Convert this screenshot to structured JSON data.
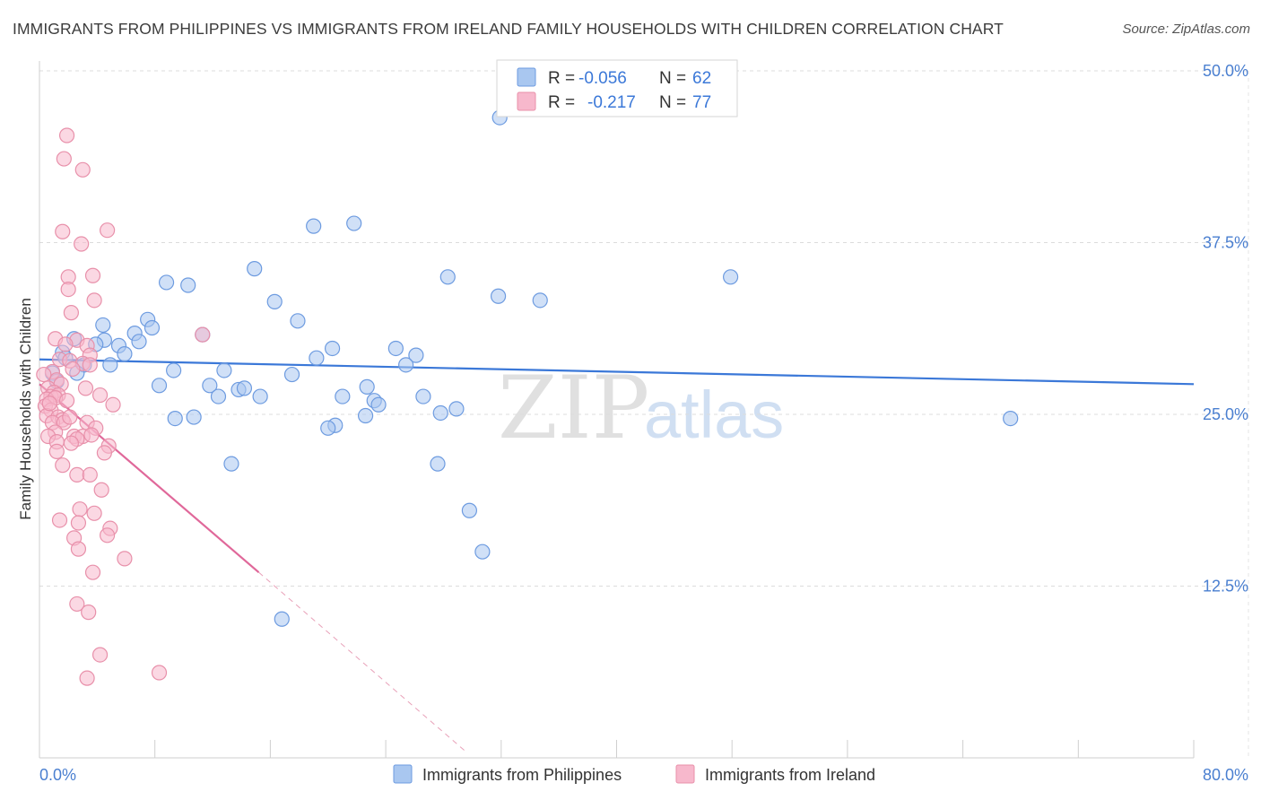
{
  "header": {
    "title": "IMMIGRANTS FROM PHILIPPINES VS IMMIGRANTS FROM IRELAND FAMILY HOUSEHOLDS WITH CHILDREN CORRELATION CHART",
    "source": "Source: ZipAtlas.com"
  },
  "watermark": {
    "zip": "ZIP",
    "atlas": "atlas"
  },
  "legend": {
    "rows": [
      {
        "r_label": "R =",
        "r_value": "-0.056",
        "n_label": "N =",
        "n_value": "62",
        "color": "#a9c7f0",
        "stroke": "#6d9be0"
      },
      {
        "r_label": "R =",
        "r_value": "-0.217",
        "n_label": "N =",
        "n_value": "77",
        "color": "#f7b8cc",
        "stroke": "#e890aa"
      }
    ]
  },
  "bottom_legend": {
    "items": [
      {
        "label": "Immigrants from Philippines",
        "color": "#a9c7f0",
        "stroke": "#6d9be0"
      },
      {
        "label": "Immigrants from Ireland",
        "color": "#f7b8cc",
        "stroke": "#e890aa"
      }
    ]
  },
  "chart_data": {
    "type": "scatter",
    "title": "IMMIGRANTS FROM PHILIPPINES VS IMMIGRANTS FROM IRELAND FAMILY HOUSEHOLDS WITH CHILDREN CORRELATION CHART",
    "xlabel": "",
    "ylabel": "Family Households with Children",
    "xlim": [
      0,
      80
    ],
    "ylim": [
      0,
      50
    ],
    "x_tick_labels": [
      "0.0%",
      "80.0%"
    ],
    "y_ticks": [
      12.5,
      25.0,
      37.5,
      50.0
    ],
    "y_tick_labels": [
      "12.5%",
      "25.0%",
      "37.5%",
      "50.0%"
    ],
    "grid": true,
    "series": [
      {
        "name": "Immigrants from Philippines",
        "color": "#6d9be0",
        "fill": "#a9c7f0",
        "trend": {
          "x": [
            0,
            80
          ],
          "y": [
            29.0,
            27.2
          ],
          "color": "#3b78d8"
        },
        "points": [
          [
            31.9,
            46.6
          ],
          [
            19.0,
            38.7
          ],
          [
            21.8,
            38.9
          ],
          [
            14.9,
            35.6
          ],
          [
            28.3,
            35.0
          ],
          [
            47.9,
            35.0
          ],
          [
            8.8,
            34.6
          ],
          [
            10.3,
            34.4
          ],
          [
            31.8,
            33.6
          ],
          [
            34.7,
            33.3
          ],
          [
            16.3,
            33.2
          ],
          [
            17.9,
            31.8
          ],
          [
            4.4,
            31.5
          ],
          [
            7.5,
            31.9
          ],
          [
            7.8,
            31.3
          ],
          [
            4.5,
            30.4
          ],
          [
            2.4,
            30.5
          ],
          [
            6.6,
            30.9
          ],
          [
            11.3,
            30.8
          ],
          [
            6.9,
            30.3
          ],
          [
            5.5,
            30.0
          ],
          [
            1.6,
            29.5
          ],
          [
            3.9,
            30.1
          ],
          [
            20.3,
            29.8
          ],
          [
            24.7,
            29.8
          ],
          [
            26.1,
            29.3
          ],
          [
            5.9,
            29.4
          ],
          [
            19.2,
            29.1
          ],
          [
            4.9,
            28.6
          ],
          [
            25.4,
            28.6
          ],
          [
            3.1,
            28.6
          ],
          [
            2.6,
            28.0
          ],
          [
            9.3,
            28.2
          ],
          [
            12.8,
            28.2
          ],
          [
            17.5,
            27.9
          ],
          [
            8.3,
            27.1
          ],
          [
            11.8,
            27.1
          ],
          [
            13.8,
            26.8
          ],
          [
            14.2,
            26.9
          ],
          [
            22.7,
            27.0
          ],
          [
            12.4,
            26.3
          ],
          [
            15.3,
            26.3
          ],
          [
            21.0,
            26.3
          ],
          [
            26.6,
            26.3
          ],
          [
            23.2,
            26.0
          ],
          [
            23.5,
            25.7
          ],
          [
            28.9,
            25.4
          ],
          [
            9.4,
            24.7
          ],
          [
            10.7,
            24.8
          ],
          [
            22.6,
            24.9
          ],
          [
            27.8,
            25.1
          ],
          [
            20.5,
            24.2
          ],
          [
            20.0,
            24.0
          ],
          [
            67.3,
            24.7
          ],
          [
            13.3,
            21.4
          ],
          [
            27.6,
            21.4
          ],
          [
            29.8,
            18.0
          ],
          [
            30.7,
            15.0
          ],
          [
            16.8,
            10.1
          ],
          [
            0.9,
            28.0
          ],
          [
            1.2,
            27.4
          ],
          [
            1.8,
            29.1
          ]
        ]
      },
      {
        "name": "Immigrants from Ireland",
        "color": "#e890aa",
        "fill": "#f7b8cc",
        "trend": {
          "x": [
            0,
            15.2
          ],
          "y": [
            27.2,
            13.5
          ],
          "dash_to": [
            29.5,
            0.5
          ],
          "color": "#e0689a"
        },
        "points": [
          [
            1.9,
            45.3
          ],
          [
            1.7,
            43.6
          ],
          [
            3.0,
            42.8
          ],
          [
            1.6,
            38.3
          ],
          [
            4.7,
            38.4
          ],
          [
            2.9,
            37.4
          ],
          [
            3.7,
            35.1
          ],
          [
            2.0,
            35.0
          ],
          [
            2.0,
            34.1
          ],
          [
            3.8,
            33.3
          ],
          [
            2.2,
            32.4
          ],
          [
            11.3,
            30.8
          ],
          [
            1.1,
            30.5
          ],
          [
            2.6,
            30.4
          ],
          [
            1.8,
            30.1
          ],
          [
            3.3,
            30.0
          ],
          [
            1.4,
            29.0
          ],
          [
            3.5,
            29.3
          ],
          [
            2.1,
            28.9
          ],
          [
            3.0,
            28.7
          ],
          [
            3.5,
            28.6
          ],
          [
            0.9,
            28.1
          ],
          [
            2.3,
            28.3
          ],
          [
            1.2,
            27.5
          ],
          [
            1.5,
            27.2
          ],
          [
            3.2,
            26.9
          ],
          [
            0.6,
            26.9
          ],
          [
            1.0,
            26.6
          ],
          [
            0.8,
            26.3
          ],
          [
            1.3,
            26.4
          ],
          [
            0.5,
            26.1
          ],
          [
            1.1,
            26.2
          ],
          [
            4.2,
            26.4
          ],
          [
            5.1,
            25.7
          ],
          [
            0.4,
            25.6
          ],
          [
            0.8,
            25.3
          ],
          [
            0.5,
            24.9
          ],
          [
            1.3,
            24.8
          ],
          [
            1.6,
            24.6
          ],
          [
            0.9,
            24.4
          ],
          [
            1.7,
            24.4
          ],
          [
            2.1,
            24.8
          ],
          [
            3.3,
            24.4
          ],
          [
            3.9,
            24.0
          ],
          [
            1.1,
            23.7
          ],
          [
            2.4,
            23.4
          ],
          [
            0.6,
            23.4
          ],
          [
            3.0,
            23.4
          ],
          [
            2.6,
            23.2
          ],
          [
            3.6,
            23.5
          ],
          [
            1.2,
            23.0
          ],
          [
            2.2,
            22.9
          ],
          [
            4.8,
            22.7
          ],
          [
            1.2,
            22.3
          ],
          [
            4.5,
            22.2
          ],
          [
            1.6,
            21.3
          ],
          [
            2.6,
            20.6
          ],
          [
            3.5,
            20.6
          ],
          [
            4.3,
            19.5
          ],
          [
            2.8,
            18.1
          ],
          [
            3.8,
            17.8
          ],
          [
            1.4,
            17.3
          ],
          [
            2.7,
            17.1
          ],
          [
            4.9,
            16.7
          ],
          [
            4.7,
            16.2
          ],
          [
            2.4,
            16.0
          ],
          [
            2.7,
            15.2
          ],
          [
            5.9,
            14.5
          ],
          [
            3.7,
            13.5
          ],
          [
            2.6,
            11.2
          ],
          [
            3.4,
            10.6
          ],
          [
            4.2,
            7.5
          ],
          [
            8.3,
            6.2
          ],
          [
            3.3,
            5.8
          ],
          [
            0.3,
            27.9
          ],
          [
            0.7,
            25.8
          ],
          [
            1.9,
            26.0
          ]
        ]
      }
    ]
  }
}
